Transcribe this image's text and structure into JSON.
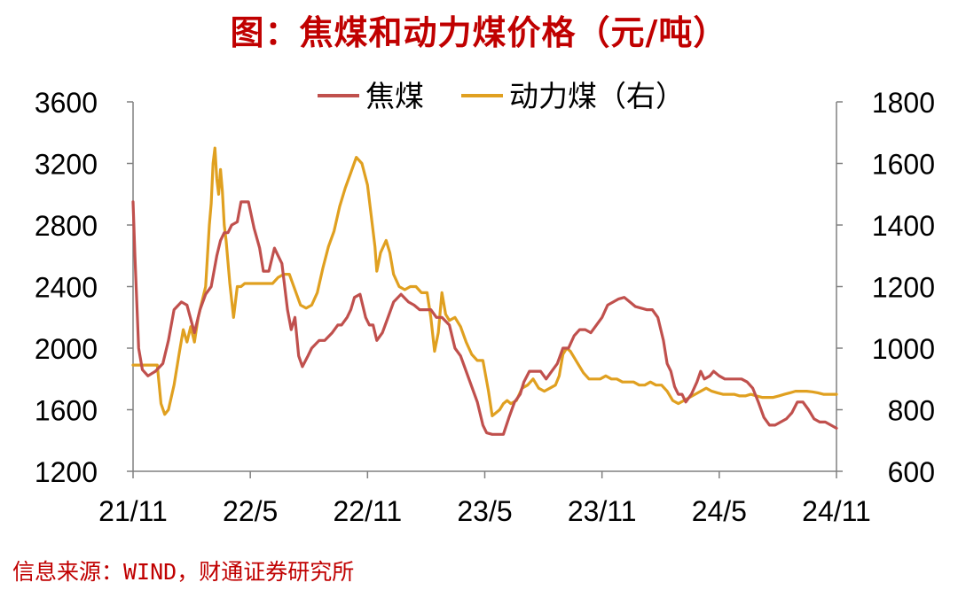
{
  "colors": {
    "coking": "#C0504D",
    "thermal": "#E0A020",
    "title": "#C00000",
    "source": "#C00000"
  },
  "title": "图：焦煤和动力煤价格（元/吨）",
  "source": "信息来源：WIND，财通证券研究所",
  "chart_data": {
    "type": "line",
    "title": "图：焦煤和动力煤价格（元/吨）",
    "x_ticks": [
      "21/11",
      "22/5",
      "22/11",
      "23/5",
      "23/11",
      "24/5",
      "24/11"
    ],
    "x_range": [
      "2021-11",
      "2024-11"
    ],
    "left_axis": {
      "ticks": [
        "3600",
        "3200",
        "2800",
        "2400",
        "2000",
        "1600",
        "1200"
      ],
      "ylim": [
        1200,
        3600
      ]
    },
    "right_axis": {
      "ticks": [
        "1800",
        "1600",
        "1400",
        "1200",
        "1000",
        "800",
        "600"
      ],
      "ylim": [
        600,
        1800
      ]
    },
    "legend_position": "top-center",
    "grid": false,
    "series": [
      {
        "name": "焦煤",
        "axis": "left",
        "points": [
          [
            0,
            2950
          ],
          [
            0.1,
            2600
          ],
          [
            0.3,
            2000
          ],
          [
            0.5,
            1860
          ],
          [
            0.8,
            1820
          ],
          [
            1.2,
            1850
          ],
          [
            1.6,
            1900
          ],
          [
            1.9,
            2050
          ],
          [
            2.2,
            2250
          ],
          [
            2.6,
            2300
          ],
          [
            2.9,
            2280
          ],
          [
            3.3,
            2100
          ],
          [
            3.6,
            2250
          ],
          [
            3.9,
            2350
          ],
          [
            4.2,
            2400
          ],
          [
            4.5,
            2600
          ],
          [
            4.7,
            2700
          ],
          [
            4.9,
            2750
          ],
          [
            5.1,
            2750
          ],
          [
            5.3,
            2800
          ],
          [
            5.6,
            2820
          ],
          [
            5.8,
            2950
          ],
          [
            6.2,
            2950
          ],
          [
            6.5,
            2780
          ],
          [
            6.8,
            2650
          ],
          [
            7.0,
            2500
          ],
          [
            7.3,
            2500
          ],
          [
            7.6,
            2650
          ],
          [
            7.8,
            2600
          ],
          [
            8.0,
            2550
          ],
          [
            8.3,
            2250
          ],
          [
            8.5,
            2120
          ],
          [
            8.7,
            2200
          ],
          [
            8.9,
            1950
          ],
          [
            9.1,
            1880
          ],
          [
            9.4,
            1950
          ],
          [
            9.6,
            2000
          ],
          [
            10.0,
            2050
          ],
          [
            10.3,
            2050
          ],
          [
            10.7,
            2100
          ],
          [
            11.0,
            2150
          ],
          [
            11.2,
            2150
          ],
          [
            11.5,
            2200
          ],
          [
            11.7,
            2250
          ],
          [
            11.9,
            2330
          ],
          [
            12.2,
            2350
          ],
          [
            12.5,
            2200
          ],
          [
            12.7,
            2150
          ],
          [
            12.9,
            2150
          ],
          [
            13.1,
            2050
          ],
          [
            13.4,
            2100
          ],
          [
            13.7,
            2200
          ],
          [
            14.0,
            2300
          ],
          [
            14.4,
            2350
          ],
          [
            14.8,
            2300
          ],
          [
            15.1,
            2280
          ],
          [
            15.4,
            2250
          ],
          [
            15.7,
            2250
          ],
          [
            16.0,
            2250
          ],
          [
            16.3,
            2200
          ],
          [
            16.6,
            2200
          ],
          [
            17.0,
            2150
          ],
          [
            17.3,
            2000
          ],
          [
            17.6,
            1950
          ],
          [
            17.9,
            1850
          ],
          [
            18.2,
            1750
          ],
          [
            18.5,
            1650
          ],
          [
            18.8,
            1500
          ],
          [
            19.0,
            1450
          ],
          [
            19.3,
            1440
          ],
          [
            19.6,
            1440
          ],
          [
            19.9,
            1440
          ],
          [
            20.2,
            1550
          ],
          [
            20.5,
            1650
          ],
          [
            20.8,
            1700
          ],
          [
            21.0,
            1780
          ],
          [
            21.3,
            1850
          ],
          [
            21.6,
            1850
          ],
          [
            21.9,
            1850
          ],
          [
            22.2,
            1800
          ],
          [
            22.5,
            1850
          ],
          [
            22.8,
            1900
          ],
          [
            23.1,
            2000
          ],
          [
            23.4,
            2000
          ],
          [
            23.7,
            2080
          ],
          [
            24.0,
            2120
          ],
          [
            24.3,
            2120
          ],
          [
            24.6,
            2100
          ],
          [
            24.9,
            2150
          ],
          [
            25.2,
            2200
          ],
          [
            25.5,
            2280
          ],
          [
            25.8,
            2300
          ],
          [
            26.1,
            2320
          ],
          [
            26.4,
            2330
          ],
          [
            26.7,
            2300
          ],
          [
            27.0,
            2270
          ],
          [
            27.3,
            2260
          ],
          [
            27.6,
            2250
          ],
          [
            27.9,
            2250
          ],
          [
            28.2,
            2200
          ],
          [
            28.5,
            2050
          ],
          [
            28.7,
            1900
          ],
          [
            28.9,
            1850
          ],
          [
            29.1,
            1750
          ],
          [
            29.3,
            1700
          ],
          [
            29.5,
            1700
          ],
          [
            29.7,
            1650
          ],
          [
            30.0,
            1700
          ],
          [
            30.3,
            1780
          ],
          [
            30.5,
            1850
          ],
          [
            30.7,
            1800
          ],
          [
            31.0,
            1820
          ],
          [
            31.2,
            1850
          ],
          [
            31.5,
            1820
          ],
          [
            31.8,
            1800
          ],
          [
            32.1,
            1800
          ],
          [
            32.4,
            1800
          ],
          [
            32.7,
            1800
          ],
          [
            33.0,
            1780
          ],
          [
            33.3,
            1740
          ],
          [
            33.6,
            1650
          ],
          [
            33.9,
            1550
          ],
          [
            34.2,
            1500
          ],
          [
            34.5,
            1500
          ],
          [
            34.8,
            1520
          ],
          [
            35.1,
            1540
          ],
          [
            35.4,
            1580
          ],
          [
            35.7,
            1650
          ],
          [
            36.0,
            1650
          ],
          [
            36.3,
            1600
          ],
          [
            36.6,
            1540
          ],
          [
            36.9,
            1520
          ],
          [
            37.2,
            1520
          ],
          [
            37.5,
            1500
          ],
          [
            37.8,
            1480
          ]
        ]
      },
      {
        "name": "动力煤（右）",
        "axis": "right",
        "points": [
          [
            0,
            945
          ],
          [
            0.4,
            945
          ],
          [
            0.8,
            945
          ],
          [
            1.1,
            945
          ],
          [
            1.3,
            945
          ],
          [
            1.5,
            820
          ],
          [
            1.7,
            785
          ],
          [
            1.9,
            800
          ],
          [
            2.2,
            880
          ],
          [
            2.5,
            990
          ],
          [
            2.7,
            1060
          ],
          [
            2.9,
            1020
          ],
          [
            3.1,
            1070
          ],
          [
            3.3,
            1020
          ],
          [
            3.5,
            1100
          ],
          [
            3.7,
            1150
          ],
          [
            3.9,
            1200
          ],
          [
            4.1,
            1400
          ],
          [
            4.2,
            1470
          ],
          [
            4.3,
            1600
          ],
          [
            4.4,
            1650
          ],
          [
            4.5,
            1550
          ],
          [
            4.6,
            1500
          ],
          [
            4.7,
            1580
          ],
          [
            4.8,
            1510
          ],
          [
            4.9,
            1400
          ],
          [
            5.0,
            1350
          ],
          [
            5.2,
            1210
          ],
          [
            5.4,
            1100
          ],
          [
            5.6,
            1200
          ],
          [
            5.8,
            1200
          ],
          [
            6.0,
            1210
          ],
          [
            6.4,
            1210
          ],
          [
            6.8,
            1210
          ],
          [
            7.2,
            1210
          ],
          [
            7.5,
            1210
          ],
          [
            7.8,
            1230
          ],
          [
            8.1,
            1240
          ],
          [
            8.4,
            1240
          ],
          [
            8.7,
            1190
          ],
          [
            9.0,
            1140
          ],
          [
            9.3,
            1130
          ],
          [
            9.6,
            1140
          ],
          [
            9.9,
            1180
          ],
          [
            10.2,
            1260
          ],
          [
            10.5,
            1330
          ],
          [
            10.8,
            1380
          ],
          [
            11.1,
            1460
          ],
          [
            11.4,
            1520
          ],
          [
            11.7,
            1570
          ],
          [
            12.0,
            1620
          ],
          [
            12.3,
            1600
          ],
          [
            12.6,
            1530
          ],
          [
            12.8,
            1430
          ],
          [
            13.0,
            1330
          ],
          [
            13.1,
            1250
          ],
          [
            13.3,
            1310
          ],
          [
            13.6,
            1350
          ],
          [
            13.8,
            1310
          ],
          [
            14.0,
            1240
          ],
          [
            14.3,
            1200
          ],
          [
            14.6,
            1190
          ],
          [
            14.9,
            1200
          ],
          [
            15.2,
            1200
          ],
          [
            15.5,
            1180
          ],
          [
            15.8,
            1180
          ],
          [
            16.0,
            1100
          ],
          [
            16.2,
            990
          ],
          [
            16.4,
            1050
          ],
          [
            16.6,
            1180
          ],
          [
            16.8,
            1110
          ],
          [
            17.0,
            1090
          ],
          [
            17.3,
            1100
          ],
          [
            17.6,
            1070
          ],
          [
            17.9,
            1020
          ],
          [
            18.2,
            980
          ],
          [
            18.5,
            960
          ],
          [
            18.8,
            960
          ],
          [
            19.1,
            860
          ],
          [
            19.3,
            780
          ],
          [
            19.5,
            790
          ],
          [
            19.7,
            800
          ],
          [
            19.9,
            820
          ],
          [
            20.1,
            830
          ],
          [
            20.3,
            820
          ],
          [
            20.6,
            830
          ],
          [
            20.9,
            870
          ],
          [
            21.2,
            880
          ],
          [
            21.5,
            900
          ],
          [
            21.8,
            870
          ],
          [
            22.1,
            860
          ],
          [
            22.4,
            870
          ],
          [
            22.7,
            880
          ],
          [
            22.9,
            910
          ],
          [
            23.1,
            980
          ],
          [
            23.3,
            1000
          ],
          [
            23.5,
            990
          ],
          [
            23.7,
            970
          ],
          [
            23.9,
            950
          ],
          [
            24.2,
            920
          ],
          [
            24.5,
            900
          ],
          [
            24.8,
            900
          ],
          [
            25.1,
            900
          ],
          [
            25.4,
            910
          ],
          [
            25.7,
            900
          ],
          [
            26.0,
            900
          ],
          [
            26.3,
            890
          ],
          [
            26.6,
            890
          ],
          [
            26.9,
            890
          ],
          [
            27.2,
            880
          ],
          [
            27.5,
            880
          ],
          [
            27.8,
            890
          ],
          [
            28.1,
            880
          ],
          [
            28.4,
            880
          ],
          [
            28.7,
            860
          ],
          [
            29.0,
            830
          ],
          [
            29.3,
            820
          ],
          [
            29.6,
            830
          ],
          [
            29.9,
            840
          ],
          [
            30.2,
            850
          ],
          [
            30.5,
            860
          ],
          [
            30.8,
            870
          ],
          [
            31.1,
            860
          ],
          [
            31.4,
            855
          ],
          [
            31.7,
            850
          ],
          [
            32.0,
            850
          ],
          [
            32.3,
            850
          ],
          [
            32.6,
            845
          ],
          [
            32.9,
            845
          ],
          [
            33.2,
            850
          ],
          [
            33.5,
            845
          ],
          [
            33.8,
            840
          ],
          [
            34.1,
            840
          ],
          [
            34.4,
            840
          ],
          [
            34.7,
            845
          ],
          [
            35.0,
            850
          ],
          [
            35.3,
            855
          ],
          [
            35.6,
            860
          ],
          [
            35.9,
            860
          ],
          [
            36.2,
            860
          ],
          [
            36.5,
            858
          ],
          [
            36.8,
            855
          ],
          [
            37.1,
            850
          ],
          [
            37.4,
            850
          ],
          [
            37.8,
            850
          ]
        ]
      }
    ]
  }
}
